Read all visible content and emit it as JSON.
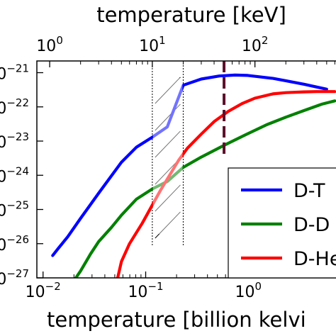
{
  "chart_data": {
    "type": "line",
    "title": "",
    "top_axis": {
      "label": "temperature  [keV]",
      "scale": "log",
      "ticks": [
        {
          "value": 1,
          "base": "10",
          "exp": "0"
        },
        {
          "value": 10,
          "base": "10",
          "exp": "1"
        },
        {
          "value": 100,
          "base": "10",
          "exp": "2"
        }
      ]
    },
    "bottom_axis": {
      "label": "temperature  [billion kelvi",
      "scale": "log",
      "ticks": [
        {
          "value": 0.01,
          "base": "10",
          "exp": "−2"
        },
        {
          "value": 0.1,
          "base": "10",
          "exp": "−1"
        },
        {
          "value": 1,
          "base": "10",
          "exp": "0"
        }
      ]
    },
    "y_axis": {
      "scale": "log",
      "ticks": [
        {
          "value": 1e-21,
          "exp": "−21"
        },
        {
          "value": 1e-22,
          "exp": "−22"
        },
        {
          "value": 1e-23,
          "exp": "−23"
        },
        {
          "value": 1e-24,
          "exp": "−24"
        },
        {
          "value": 1e-25,
          "exp": "−25"
        },
        {
          "value": 1e-26,
          "exp": "−26"
        },
        {
          "value": 1e-27,
          "exp": "−27"
        }
      ]
    },
    "xlim_keV": [
      0.75,
      700
    ],
    "ylim": [
      1e-27,
      2.2e-21
    ],
    "grid": false,
    "legend_position": "lower-right",
    "reference_line_keV": 50,
    "hatched_band_keV": [
      10,
      20
    ],
    "series": [
      {
        "name": "D-T",
        "color": "#0000ff",
        "x_keV": [
          1.07,
          1.2,
          1.5,
          2.0,
          3.0,
          5.0,
          7.0,
          10.0,
          14.0,
          20.0,
          30.0,
          45.0,
          64.0,
          85.0,
          110.0,
          150.0,
          200.0,
          300.0,
          420.0,
          500.0
        ],
        "y": [
          4.5e-27,
          7e-27,
          1.6e-26,
          5.5e-26,
          3e-25,
          2.4e-24,
          6.6e-24,
          1.3e-23,
          2.6e-23,
          4.3e-22,
          6.5e-22,
          8e-22,
          8.5e-22,
          8.3e-22,
          7.6e-22,
          6.8e-22,
          5.8e-22,
          4.6e-22,
          3.7e-22,
          3.3e-22
        ]
      },
      {
        "name": "D-D",
        "color": "#008000",
        "x_keV": [
          1.8,
          2.0,
          2.5,
          3.0,
          4.0,
          5.0,
          7.0,
          10.0,
          14.0,
          20.0,
          30.0,
          50.0,
          80.0,
          130.0,
          200.0,
          300.0,
          450.0,
          600.0
        ],
        "y": [
          1e-27,
          1.6e-27,
          5e-27,
          1.15e-26,
          3e-26,
          6.8e-26,
          2e-25,
          4e-25,
          6.6e-25,
          1.7e-24,
          3.4e-24,
          7.5e-24,
          1.5e-23,
          3e-23,
          5e-23,
          7.8e-23,
          1.2e-22,
          1.5e-22
        ]
      },
      {
        "name": "D-He",
        "color": "#ff0000",
        "x_keV": [
          4.6,
          5.0,
          6.0,
          8.0,
          10.0,
          12.0,
          15.0,
          18.0,
          22.0,
          30.0,
          40.0,
          55.0,
          75.0,
          100.0,
          150.0,
          200.0,
          300.0,
          400.0,
          500.0,
          600.0
        ],
        "y": [
          1e-27,
          3e-27,
          1e-26,
          4e-26,
          1.35e-25,
          3.6e-25,
          1.1e-24,
          2.7e-24,
          6.2e-24,
          1.6e-23,
          3.7e-23,
          7.4e-23,
          1.25e-22,
          1.8e-22,
          2.4e-22,
          2.6e-22,
          2.75e-22,
          2.8e-22,
          2.8e-22,
          2.8e-22
        ]
      }
    ]
  }
}
